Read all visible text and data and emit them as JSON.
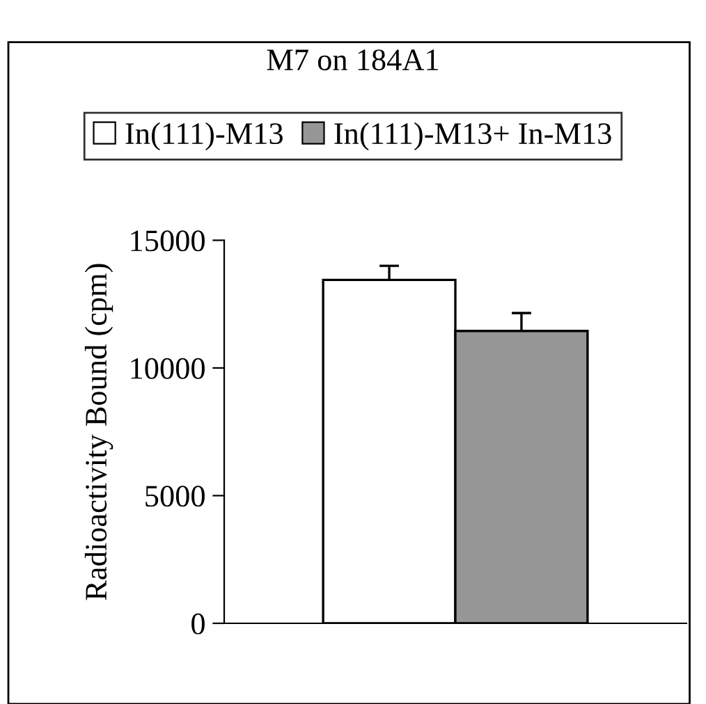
{
  "chart_data": {
    "type": "bar",
    "title": "M7 on 184A1",
    "ylabel": "Radioactivity Bound (cpm)",
    "categories": [
      null
    ],
    "series": [
      {
        "name": "In(111)-M13",
        "color": "#ffffff",
        "values": [
          13450
        ],
        "errors": [
          550
        ]
      },
      {
        "name": "In(111)-M13+ In-M13",
        "color": "#969696",
        "values": [
          11450
        ],
        "errors": [
          700
        ]
      }
    ],
    "ylim": [
      0,
      15000
    ],
    "yticks": [
      0,
      5000,
      10000,
      15000
    ],
    "grid": false,
    "legend": "top"
  }
}
